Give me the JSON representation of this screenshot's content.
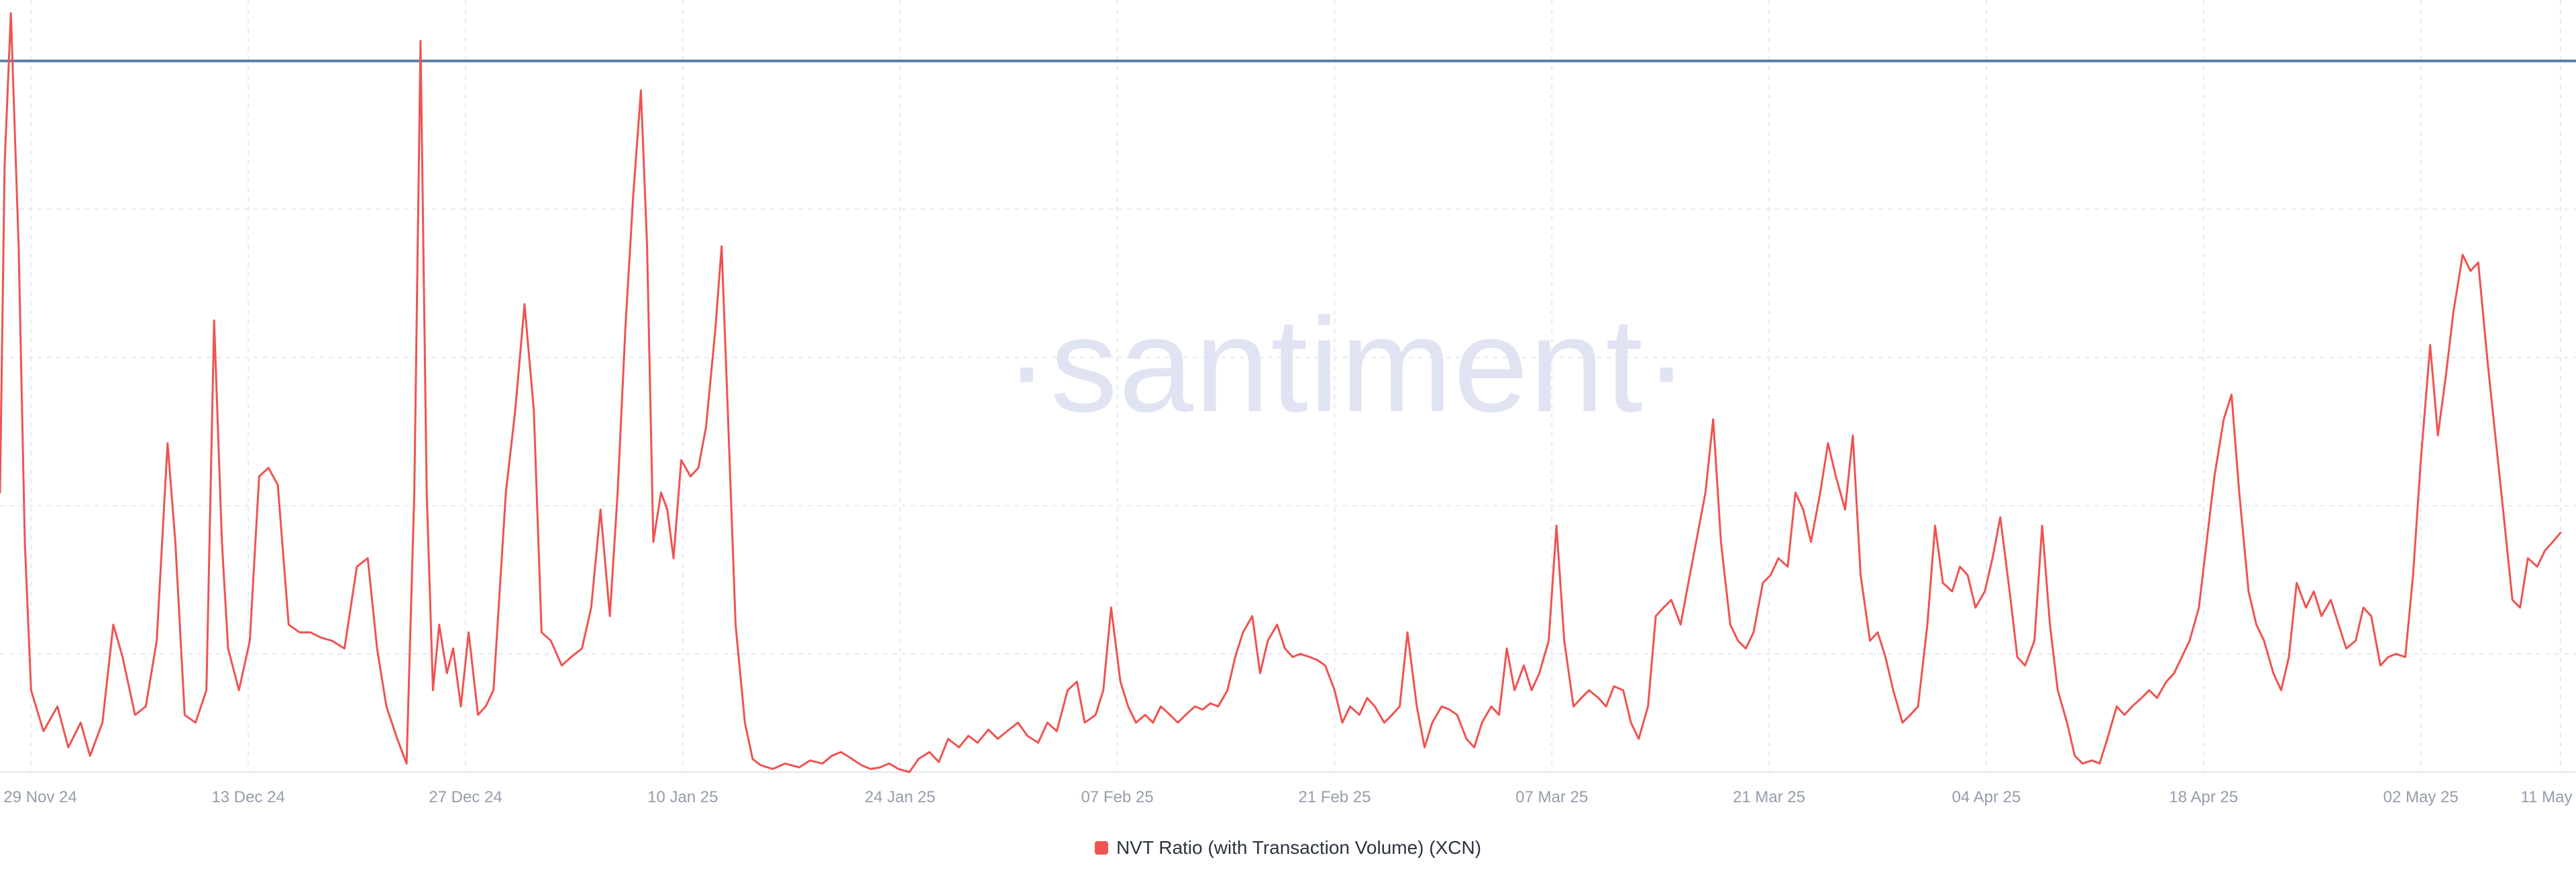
{
  "watermark": {
    "text": "·santiment·",
    "color": "#e0e4f2"
  },
  "legend": {
    "label": "NVT Ratio (with Transaction Volume) (XCN)",
    "marker_color": "#ef5350"
  },
  "chart_data": {
    "type": "line",
    "title": "",
    "xlabel": "",
    "ylabel": "",
    "grid": true,
    "legend_position": "bottom-center",
    "x_range": [
      0,
      166
    ],
    "y_range": [
      0,
      100
    ],
    "y_gridlines": [
      15.3,
      34.5,
      53.7,
      72.9,
      92.1
    ],
    "threshold_line": {
      "value": 92.1,
      "color": "#5b80a5"
    },
    "x_ticks": [
      {
        "day": 2,
        "label": "29 Nov 24"
      },
      {
        "day": 16,
        "label": "13 Dec 24"
      },
      {
        "day": 30,
        "label": "27 Dec 24"
      },
      {
        "day": 44,
        "label": "10 Jan 25"
      },
      {
        "day": 58,
        "label": "24 Jan 25"
      },
      {
        "day": 72,
        "label": "07 Feb 25"
      },
      {
        "day": 86,
        "label": "21 Feb 25"
      },
      {
        "day": 100,
        "label": "07 Mar 25"
      },
      {
        "day": 114,
        "label": "21 Mar 25"
      },
      {
        "day": 128,
        "label": "04 Apr 25"
      },
      {
        "day": 142,
        "label": "18 Apr 25"
      },
      {
        "day": 156,
        "label": "02 May 25"
      },
      {
        "day": 165,
        "label": "11 May"
      }
    ],
    "series": [
      {
        "name": "NVT Ratio (with Transaction Volume) (XCN)",
        "color": "#ef5350",
        "points": [
          [
            0,
            36.2
          ],
          [
            0.3,
            78.7
          ],
          [
            0.7,
            98.3
          ],
          [
            1.2,
            68.1
          ],
          [
            1.6,
            29.8
          ],
          [
            2,
            10.6
          ],
          [
            2.8,
            5.3
          ],
          [
            3.7,
            8.5
          ],
          [
            4.4,
            3.2
          ],
          [
            5.2,
            6.4
          ],
          [
            5.8,
            2.1
          ],
          [
            6.6,
            6.4
          ],
          [
            7.3,
            19.1
          ],
          [
            7.9,
            14.9
          ],
          [
            8.7,
            7.4
          ],
          [
            9.4,
            8.5
          ],
          [
            10.1,
            17
          ],
          [
            10.8,
            42.6
          ],
          [
            11.3,
            29.8
          ],
          [
            11.9,
            7.4
          ],
          [
            12.6,
            6.4
          ],
          [
            13.3,
            10.6
          ],
          [
            13.8,
            58.5
          ],
          [
            14.3,
            29.8
          ],
          [
            14.7,
            16
          ],
          [
            15.4,
            10.6
          ],
          [
            16.1,
            17
          ],
          [
            16.7,
            38.3
          ],
          [
            17.3,
            39.4
          ],
          [
            17.9,
            37.2
          ],
          [
            18.6,
            19.1
          ],
          [
            19.3,
            18.1
          ],
          [
            20,
            18.1
          ],
          [
            20.7,
            17.4
          ],
          [
            21.4,
            17
          ],
          [
            22.2,
            16
          ],
          [
            23,
            26.6
          ],
          [
            23.7,
            27.7
          ],
          [
            24.3,
            16
          ],
          [
            24.9,
            8.5
          ],
          [
            25.6,
            4.3
          ],
          [
            26.2,
            1.1
          ],
          [
            26.7,
            36.2
          ],
          [
            27.1,
            94.7
          ],
          [
            27.5,
            36.2
          ],
          [
            27.9,
            10.6
          ],
          [
            28.3,
            19.1
          ],
          [
            28.8,
            12.8
          ],
          [
            29.2,
            16
          ],
          [
            29.7,
            8.5
          ],
          [
            30.2,
            18.1
          ],
          [
            30.8,
            7.4
          ],
          [
            31.3,
            8.5
          ],
          [
            31.8,
            10.6
          ],
          [
            32.6,
            36.2
          ],
          [
            33.2,
            46.8
          ],
          [
            33.8,
            60.6
          ],
          [
            34.4,
            46.8
          ],
          [
            34.9,
            18.1
          ],
          [
            35.5,
            17
          ],
          [
            36.2,
            13.8
          ],
          [
            36.8,
            14.9
          ],
          [
            37.5,
            16
          ],
          [
            38.1,
            21.3
          ],
          [
            38.7,
            34
          ],
          [
            39.3,
            20.2
          ],
          [
            39.8,
            36.2
          ],
          [
            40.3,
            57.4
          ],
          [
            40.8,
            74.5
          ],
          [
            41.3,
            88.3
          ],
          [
            41.7,
            68.1
          ],
          [
            42.1,
            29.8
          ],
          [
            42.6,
            36.2
          ],
          [
            43,
            34
          ],
          [
            43.4,
            27.7
          ],
          [
            43.9,
            40.4
          ],
          [
            44.5,
            38.3
          ],
          [
            45,
            39.4
          ],
          [
            45.5,
            44.7
          ],
          [
            46.1,
            57.4
          ],
          [
            46.5,
            68.1
          ],
          [
            46.9,
            46.8
          ],
          [
            47.4,
            19.1
          ],
          [
            48,
            6.4
          ],
          [
            48.5,
            1.7
          ],
          [
            49,
            0.9
          ],
          [
            49.8,
            0.4
          ],
          [
            50.6,
            1.1
          ],
          [
            51.5,
            0.6
          ],
          [
            52.2,
            1.5
          ],
          [
            53,
            1.1
          ],
          [
            53.6,
            2.1
          ],
          [
            54.2,
            2.6
          ],
          [
            54.9,
            1.7
          ],
          [
            55.5,
            0.9
          ],
          [
            56.1,
            0.4
          ],
          [
            56.7,
            0.6
          ],
          [
            57.3,
            1.1
          ],
          [
            57.9,
            0.4
          ],
          [
            58.6,
            0
          ],
          [
            59.2,
            1.7
          ],
          [
            59.9,
            2.6
          ],
          [
            60.5,
            1.3
          ],
          [
            61.1,
            4.3
          ],
          [
            61.8,
            3.2
          ],
          [
            62.4,
            4.7
          ],
          [
            63,
            3.8
          ],
          [
            63.7,
            5.5
          ],
          [
            64.3,
            4.3
          ],
          [
            64.9,
            5.3
          ],
          [
            65.6,
            6.4
          ],
          [
            66.2,
            4.7
          ],
          [
            66.9,
            3.8
          ],
          [
            67.5,
            6.4
          ],
          [
            68.1,
            5.3
          ],
          [
            68.8,
            10.6
          ],
          [
            69.4,
            11.7
          ],
          [
            69.9,
            6.4
          ],
          [
            70.6,
            7.4
          ],
          [
            71.1,
            10.6
          ],
          [
            71.6,
            21.3
          ],
          [
            72.2,
            11.7
          ],
          [
            72.7,
            8.5
          ],
          [
            73.2,
            6.4
          ],
          [
            73.8,
            7.4
          ],
          [
            74.3,
            6.4
          ],
          [
            74.8,
            8.5
          ],
          [
            75.4,
            7.4
          ],
          [
            75.9,
            6.4
          ],
          [
            76.4,
            7.4
          ],
          [
            77,
            8.5
          ],
          [
            77.5,
            8.1
          ],
          [
            78,
            8.9
          ],
          [
            78.5,
            8.5
          ],
          [
            79.1,
            10.6
          ],
          [
            79.6,
            14.9
          ],
          [
            80.1,
            18.1
          ],
          [
            80.7,
            20.2
          ],
          [
            81.2,
            12.8
          ],
          [
            81.7,
            17
          ],
          [
            82.3,
            19.1
          ],
          [
            82.8,
            16
          ],
          [
            83.3,
            14.9
          ],
          [
            83.8,
            15.3
          ],
          [
            84.4,
            14.9
          ],
          [
            84.9,
            14.5
          ],
          [
            85.4,
            13.8
          ],
          [
            86,
            10.6
          ],
          [
            86.5,
            6.4
          ],
          [
            87,
            8.5
          ],
          [
            87.6,
            7.4
          ],
          [
            88.1,
            9.6
          ],
          [
            88.6,
            8.5
          ],
          [
            89.2,
            6.4
          ],
          [
            89.7,
            7.4
          ],
          [
            90.2,
            8.5
          ],
          [
            90.7,
            18.1
          ],
          [
            91.3,
            8.5
          ],
          [
            91.8,
            3.2
          ],
          [
            92.3,
            6.4
          ],
          [
            92.9,
            8.5
          ],
          [
            93.4,
            8.1
          ],
          [
            93.9,
            7.4
          ],
          [
            94.5,
            4.3
          ],
          [
            95,
            3.2
          ],
          [
            95.5,
            6.4
          ],
          [
            96.1,
            8.5
          ],
          [
            96.6,
            7.4
          ],
          [
            97.1,
            16
          ],
          [
            97.6,
            10.6
          ],
          [
            98.2,
            13.8
          ],
          [
            98.7,
            10.6
          ],
          [
            99.2,
            12.8
          ],
          [
            99.8,
            17
          ],
          [
            100.3,
            31.9
          ],
          [
            100.8,
            17
          ],
          [
            101.4,
            8.5
          ],
          [
            101.9,
            9.6
          ],
          [
            102.4,
            10.6
          ],
          [
            103,
            9.6
          ],
          [
            103.5,
            8.5
          ],
          [
            104,
            11.1
          ],
          [
            104.6,
            10.6
          ],
          [
            105.1,
            6.4
          ],
          [
            105.6,
            4.3
          ],
          [
            106.2,
            8.5
          ],
          [
            106.7,
            20.2
          ],
          [
            107.2,
            21.3
          ],
          [
            107.7,
            22.3
          ],
          [
            108.3,
            19.1
          ],
          [
            108.8,
            24.5
          ],
          [
            109.3,
            29.8
          ],
          [
            109.9,
            36.2
          ],
          [
            110.4,
            45.7
          ],
          [
            110.9,
            29.8
          ],
          [
            111.5,
            19.1
          ],
          [
            112,
            17
          ],
          [
            112.5,
            16
          ],
          [
            113,
            18.1
          ],
          [
            113.6,
            24.5
          ],
          [
            114.1,
            25.5
          ],
          [
            114.6,
            27.7
          ],
          [
            115.2,
            26.6
          ],
          [
            115.7,
            36.2
          ],
          [
            116.2,
            34
          ],
          [
            116.7,
            29.8
          ],
          [
            117.3,
            36.2
          ],
          [
            117.8,
            42.6
          ],
          [
            118.3,
            38.3
          ],
          [
            118.9,
            34
          ],
          [
            119.4,
            43.6
          ],
          [
            119.9,
            25.5
          ],
          [
            120.5,
            17
          ],
          [
            121,
            18.1
          ],
          [
            121.5,
            14.9
          ],
          [
            122,
            10.6
          ],
          [
            122.6,
            6.4
          ],
          [
            123.1,
            7.4
          ],
          [
            123.6,
            8.5
          ],
          [
            124.2,
            19.1
          ],
          [
            124.7,
            31.9
          ],
          [
            125.2,
            24.5
          ],
          [
            125.8,
            23.4
          ],
          [
            126.3,
            26.6
          ],
          [
            126.8,
            25.5
          ],
          [
            127.3,
            21.3
          ],
          [
            127.9,
            23.4
          ],
          [
            128.4,
            27.7
          ],
          [
            128.9,
            33
          ],
          [
            129.5,
            23.4
          ],
          [
            130,
            14.9
          ],
          [
            130.5,
            13.8
          ],
          [
            131.1,
            17
          ],
          [
            131.6,
            31.9
          ],
          [
            132.1,
            19.1
          ],
          [
            132.6,
            10.6
          ],
          [
            133.2,
            6.4
          ],
          [
            133.7,
            2.1
          ],
          [
            134.2,
            1.1
          ],
          [
            134.8,
            1.5
          ],
          [
            135.3,
            1.1
          ],
          [
            135.8,
            4.3
          ],
          [
            136.4,
            8.5
          ],
          [
            136.9,
            7.4
          ],
          [
            137.4,
            8.5
          ],
          [
            138,
            9.6
          ],
          [
            138.5,
            10.6
          ],
          [
            139,
            9.6
          ],
          [
            139.6,
            11.7
          ],
          [
            140.1,
            12.8
          ],
          [
            140.6,
            14.9
          ],
          [
            141.1,
            17
          ],
          [
            141.7,
            21.3
          ],
          [
            142.2,
            29.8
          ],
          [
            142.7,
            38.3
          ],
          [
            143.3,
            45.7
          ],
          [
            143.8,
            48.9
          ],
          [
            144.3,
            36.2
          ],
          [
            144.9,
            23.4
          ],
          [
            145.4,
            19.1
          ],
          [
            145.9,
            17
          ],
          [
            146.5,
            12.8
          ],
          [
            147,
            10.6
          ],
          [
            147.5,
            14.9
          ],
          [
            148,
            24.5
          ],
          [
            148.6,
            21.3
          ],
          [
            149.1,
            23.4
          ],
          [
            149.6,
            20.2
          ],
          [
            150.2,
            22.3
          ],
          [
            150.7,
            19.1
          ],
          [
            151.2,
            16
          ],
          [
            151.8,
            17
          ],
          [
            152.3,
            21.3
          ],
          [
            152.8,
            20.2
          ],
          [
            153.4,
            13.8
          ],
          [
            153.9,
            14.9
          ],
          [
            154.4,
            15.3
          ],
          [
            155,
            14.9
          ],
          [
            155.5,
            25.5
          ],
          [
            156,
            40.4
          ],
          [
            156.6,
            55.3
          ],
          [
            157.1,
            43.6
          ],
          [
            157.6,
            51.1
          ],
          [
            158.1,
            59.6
          ],
          [
            158.7,
            67
          ],
          [
            159.2,
            64.9
          ],
          [
            159.7,
            66
          ],
          [
            160.3,
            53.2
          ],
          [
            160.8,
            43.6
          ],
          [
            161.3,
            34
          ],
          [
            161.9,
            22.3
          ],
          [
            162.4,
            21.3
          ],
          [
            162.9,
            27.7
          ],
          [
            163.5,
            26.6
          ],
          [
            164,
            28.7
          ],
          [
            164.5,
            29.8
          ],
          [
            165,
            31
          ]
        ]
      }
    ]
  }
}
